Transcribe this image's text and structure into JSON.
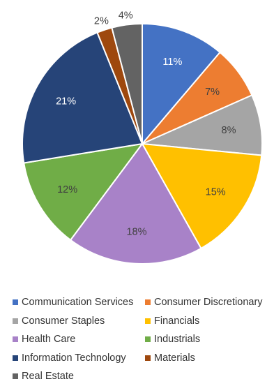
{
  "chart_data": {
    "type": "pie",
    "title": "",
    "start_angle_degrees": 0,
    "direction": "clockwise",
    "slices": [
      {
        "label": "Communication Services",
        "value": 11,
        "display": "11%",
        "color": "#4472C4",
        "label_color": "#ffffff"
      },
      {
        "label": "Consumer Discretionary",
        "value": 7,
        "display": "7%",
        "color": "#ED7D31",
        "label_color": "#404040"
      },
      {
        "label": "Consumer Staples",
        "value": 8,
        "display": "8%",
        "color": "#A5A5A5",
        "label_color": "#404040"
      },
      {
        "label": "Financials",
        "value": 15,
        "display": "15%",
        "color": "#FFC000",
        "label_color": "#404040"
      },
      {
        "label": "Health Care",
        "value": 18,
        "display": "18%",
        "color": "#A882C8",
        "label_color": "#404040"
      },
      {
        "label": "Industrials",
        "value": 12,
        "display": "12%",
        "color": "#70AD47",
        "label_color": "#404040"
      },
      {
        "label": "Information Technology",
        "value": 21,
        "display": "21%",
        "color": "#264478",
        "label_color": "#ffffff"
      },
      {
        "label": "Materials",
        "value": 2,
        "display": "2%",
        "color": "#9E480E",
        "label_color": "#404040"
      },
      {
        "label": "Real Estate",
        "value": 4,
        "display": "4%",
        "color": "#636363",
        "label_color": "#404040"
      }
    ],
    "legend": {
      "position": "bottom",
      "rows": [
        [
          "Communication Services",
          "Consumer Discretionary"
        ],
        [
          "Consumer Staples",
          "Financials"
        ],
        [
          "Health Care",
          "Industrials"
        ],
        [
          "Information Technology",
          "Materials"
        ],
        [
          "Real Estate"
        ]
      ]
    }
  }
}
